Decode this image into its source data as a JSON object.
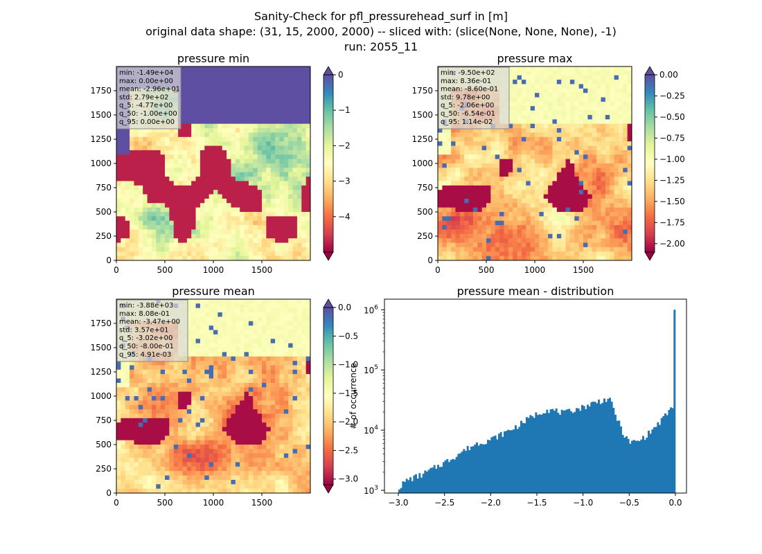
{
  "suptitle": [
    "Sanity-Check for pfl_pressurehead_surf in [m]",
    "original data shape: (31, 15, 2000, 2000) -- sliced with: (slice(None, None, None), -1)",
    "run: 2055_11"
  ],
  "colors": {
    "spectral": [
      "#9e0142",
      "#d53e4f",
      "#f46d43",
      "#fdae61",
      "#fee08b",
      "#ffffbf",
      "#e6f598",
      "#abdda4",
      "#66c2a5",
      "#3288bd",
      "#5e4fa2"
    ],
    "hist_bar": "#1f77b4"
  },
  "chart_data": [
    {
      "type": "heatmap",
      "title": "pressure min",
      "colormap": "Spectral",
      "x_ticks": [
        "0",
        "500",
        "1000",
        "1500"
      ],
      "y_ticks": [
        "0",
        "250",
        "500",
        "750",
        "1000",
        "1250",
        "1500",
        "1750"
      ],
      "xlim": [
        0,
        2000
      ],
      "ylim": [
        0,
        2000
      ],
      "vmin": -5,
      "vmax": 0,
      "colorbar_ticks": [
        "0",
        "−1",
        "−2",
        "−3",
        "−4"
      ],
      "colorbar_extend": "both",
      "stats": [
        "min: -1.49e+04",
        "max: 0.00e+00",
        "mean: -2.96e+01",
        "std: 2.79e+02",
        "q_5: -4.77e+00",
        "q_50: -1.00e+00",
        "q_95: 0.00e+00"
      ]
    },
    {
      "type": "heatmap",
      "title": "pressure max",
      "colormap": "Spectral",
      "x_ticks": [
        "0",
        "500",
        "1000",
        "1500"
      ],
      "y_ticks": [
        "0",
        "250",
        "500",
        "750",
        "1000",
        "1250",
        "1500",
        "1750"
      ],
      "xlim": [
        0,
        2000
      ],
      "ylim": [
        0,
        2000
      ],
      "vmin": -2.1,
      "vmax": 0,
      "colorbar_ticks": [
        "0.00",
        "−0.25",
        "−0.50",
        "−0.75",
        "−1.00",
        "−1.25",
        "−1.50",
        "−1.75",
        "−2.00"
      ],
      "colorbar_extend": "both",
      "stats": [
        "min: -9.50e+02",
        "max: 8.36e-01",
        "mean: -8.60e-01",
        "std: 9.78e+00",
        "q_5: -2.06e+00",
        "q_50: -6.54e-01",
        "q_95: 1.14e-02"
      ]
    },
    {
      "type": "heatmap",
      "title": "pressure mean",
      "colormap": "Spectral",
      "x_ticks": [
        "0",
        "500",
        "1000",
        "1500"
      ],
      "y_ticks": [
        "0",
        "250",
        "500",
        "750",
        "1000",
        "1250",
        "1500",
        "1750"
      ],
      "xlim": [
        0,
        2000
      ],
      "ylim": [
        0,
        2000
      ],
      "vmin": -3.1,
      "vmax": 0,
      "colorbar_ticks": [
        "0.0",
        "−0.5",
        "−1.0",
        "−1.5",
        "−2.0",
        "−2.5",
        "−3.0"
      ],
      "colorbar_extend": "both",
      "stats": [
        "min: -3.88e+03",
        "max: 8.08e-01",
        "mean: -3.47e+00",
        "std: 3.57e+01",
        "q_5: -3.02e+00",
        "q_50: -8.00e-01",
        "q_95: 4.91e-03"
      ]
    },
    {
      "type": "bar",
      "title": "pressure mean - distribution",
      "ylabel": "# of occurrence",
      "xlabel": "",
      "y_scale": "log",
      "xlim": [
        -3.15,
        0.12
      ],
      "ylim": [
        900,
        1500000
      ],
      "x_ticks": [
        "−3.0",
        "−2.5",
        "−2.0",
        "−1.5",
        "−1.0",
        "−0.5",
        "0.0"
      ],
      "y_ticks": [
        "10^3",
        "10^4",
        "10^5",
        "10^6"
      ],
      "bin_range": [
        -3.0,
        0.0
      ],
      "bin_count": 150,
      "profile": [
        [
          -3.0,
          1100
        ],
        [
          -2.9,
          1500
        ],
        [
          -2.75,
          1800
        ],
        [
          -2.6,
          2400
        ],
        [
          -2.45,
          3200
        ],
        [
          -2.3,
          4500
        ],
        [
          -2.15,
          6000
        ],
        [
          -2.0,
          7000
        ],
        [
          -1.85,
          9000
        ],
        [
          -1.7,
          12000
        ],
        [
          -1.55,
          17000
        ],
        [
          -1.4,
          22000
        ],
        [
          -1.3,
          21000
        ],
        [
          -1.2,
          19000
        ],
        [
          -1.1,
          22000
        ],
        [
          -1.0,
          24000
        ],
        [
          -0.9,
          28000
        ],
        [
          -0.8,
          31000
        ],
        [
          -0.72,
          33000
        ],
        [
          -0.68,
          25000
        ],
        [
          -0.62,
          14000
        ],
        [
          -0.55,
          8000
        ],
        [
          -0.5,
          6300
        ],
        [
          -0.4,
          6500
        ],
        [
          -0.3,
          8500
        ],
        [
          -0.2,
          12000
        ],
        [
          -0.1,
          18000
        ],
        [
          -0.02,
          26000
        ],
        [
          0.0,
          1000000
        ]
      ]
    }
  ]
}
